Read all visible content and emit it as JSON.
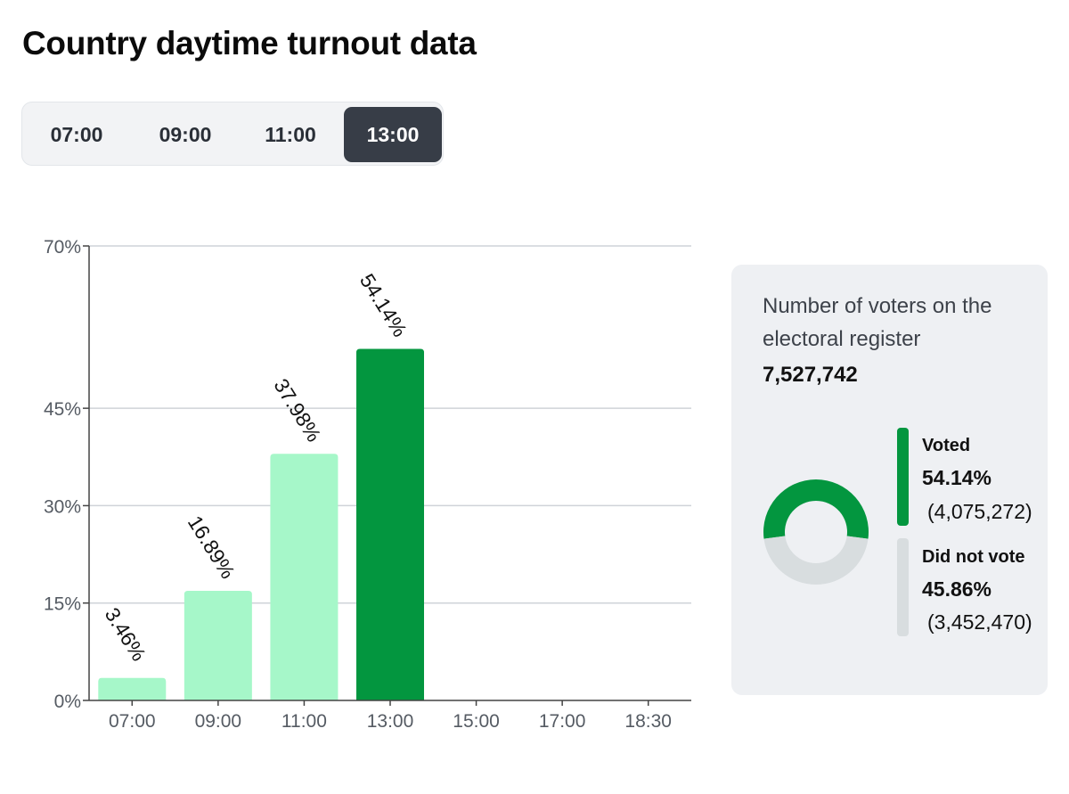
{
  "page": {
    "title": "Country daytime turnout data"
  },
  "tabs": [
    {
      "label": "07:00",
      "active": false
    },
    {
      "label": "09:00",
      "active": false
    },
    {
      "label": "11:00",
      "active": false
    },
    {
      "label": "13:00",
      "active": true
    }
  ],
  "chart_data": {
    "type": "bar",
    "categories": [
      "07:00",
      "09:00",
      "11:00",
      "13:00",
      "15:00",
      "17:00",
      "18:30"
    ],
    "values": [
      3.46,
      16.89,
      37.98,
      54.14,
      null,
      null,
      null
    ],
    "value_labels": [
      "3.46%",
      "16.89%",
      "37.98%",
      "54.14%",
      "",
      "",
      ""
    ],
    "ylim": [
      0,
      70
    ],
    "yticks": [
      0,
      15,
      30,
      45,
      70
    ],
    "ytick_labels": [
      "0%",
      "15%",
      "30%",
      "45%",
      "70%"
    ],
    "grid": true,
    "colors": {
      "highlight": "#03963f",
      "default": "#a6f7c9"
    },
    "highlight_index": 3
  },
  "register": {
    "label": "Number of voters on the electoral register",
    "value": "7,527,742",
    "voted": {
      "label": "Voted",
      "percent": "54.14%",
      "count": "(4,075,272)",
      "fraction": 0.5414,
      "color": "#03963f"
    },
    "not_voted": {
      "label": "Did not vote",
      "percent": "45.86%",
      "count": "(3,452,470)",
      "fraction": 0.4586,
      "color": "#d8dddf"
    }
  }
}
